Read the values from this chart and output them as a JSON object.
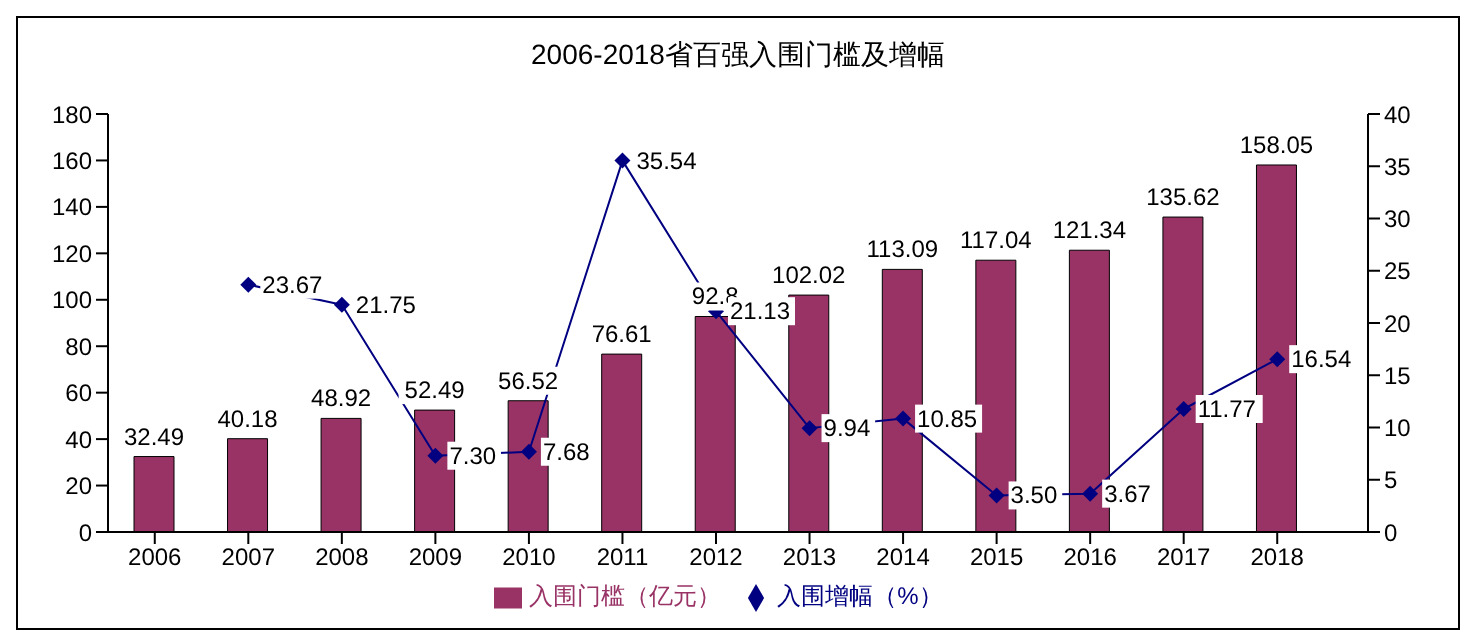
{
  "chart_data": {
    "type": "bar",
    "title": "2006-2018省百强入围门槛及增幅",
    "categories": [
      "2006",
      "2007",
      "2008",
      "2009",
      "2010",
      "2011",
      "2012",
      "2013",
      "2014",
      "2015",
      "2016",
      "2017",
      "2018"
    ],
    "series": [
      {
        "name": "入围门槛（亿元）",
        "color": "#993366",
        "values": [
          32.49,
          40.18,
          48.92,
          52.49,
          56.52,
          76.61,
          92.8,
          102.02,
          113.09,
          117.04,
          121.34,
          135.62,
          158.05
        ],
        "value_labels": [
          "32.49",
          "40.18",
          "48.92",
          "52.49",
          "56.52",
          "76.61",
          "92.8",
          "102.02",
          "113.09",
          "117.04",
          "121.34",
          "135.62",
          "158.05"
        ]
      },
      {
        "name": "入围增幅（%）",
        "type": "line",
        "axis": "y2",
        "color": "#000080",
        "marker": "diamond",
        "values": [
          null,
          23.67,
          21.75,
          7.3,
          7.68,
          35.54,
          21.13,
          9.94,
          10.85,
          3.5,
          3.67,
          11.77,
          16.54
        ],
        "value_labels": [
          null,
          "23.67",
          "21.75",
          "7.30",
          "7.68",
          "35.54",
          "21.13",
          "9.94",
          "10.85",
          "3.50",
          "3.67",
          "11.77",
          "16.54"
        ]
      }
    ],
    "ylim": [
      0,
      180
    ],
    "yticks": [
      0,
      20,
      40,
      60,
      80,
      100,
      120,
      140,
      160,
      180
    ],
    "y2lim": [
      0,
      40
    ],
    "y2ticks": [
      0,
      5,
      10,
      15,
      20,
      25,
      30,
      35,
      40
    ],
    "grid": false,
    "legend": "bottom"
  }
}
